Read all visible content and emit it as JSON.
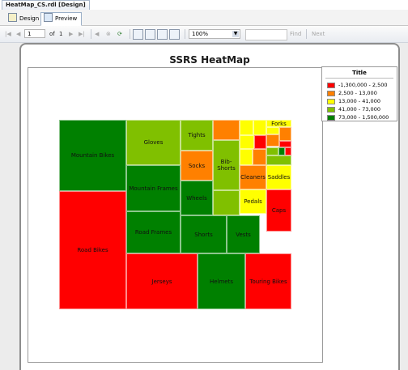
{
  "document_tab": "HeatMap_CS.rdl [Design]",
  "view_tabs": {
    "design": "Design",
    "preview": "Preview"
  },
  "toolbar": {
    "page_value": "1",
    "of_label": "of",
    "total_pages": "1",
    "zoom": "100%",
    "find_label": "Find",
    "next_label": "Next",
    "icons": [
      "first-page-icon",
      "previous-page-icon",
      "next-page-icon",
      "last-page-icon",
      "back-icon",
      "stop-icon",
      "refresh-icon",
      "print-icon",
      "print-layout-icon",
      "page-setup-icon",
      "export-icon"
    ]
  },
  "report": {
    "title": "SSRS HeatMap"
  },
  "legend": {
    "title": "Title",
    "items": [
      {
        "label": "-1,300,000 - 2,500",
        "color": "#ff0000"
      },
      {
        "label": "2,500 - 13,000",
        "color": "#ff8000"
      },
      {
        "label": "13,000 - 41,000",
        "color": "#ffff00"
      },
      {
        "label": "41,000 - 73,000",
        "color": "#80c000"
      },
      {
        "label": "73,000 - 1,500,000",
        "color": "#008000"
      }
    ]
  },
  "chart_data": {
    "type": "heatmap",
    "title": "SSRS HeatMap",
    "legend_title": "Title",
    "legend_placement": "right",
    "tiles": [
      {
        "label": "Mountain Bikes",
        "bucket": 4
      },
      {
        "label": "Road Bikes",
        "bucket": 0
      },
      {
        "label": "Gloves",
        "bucket": 3
      },
      {
        "label": "Mountain Frames",
        "bucket": 4
      },
      {
        "label": "Road Frames",
        "bucket": 4
      },
      {
        "label": "Jerseys",
        "bucket": 0
      },
      {
        "label": "Tights",
        "bucket": 3
      },
      {
        "label": "Socks",
        "bucket": 1
      },
      {
        "label": "Wheels",
        "bucket": 4
      },
      {
        "label": "Shorts",
        "bucket": 4
      },
      {
        "label": "Helmets",
        "bucket": 4
      },
      {
        "label": "Bib-Shorts",
        "bucket": 3
      },
      {
        "label": "Vests",
        "bucket": 4
      },
      {
        "label": "Touring Bikes",
        "bucket": 0
      },
      {
        "label": "Cleaners",
        "bucket": 1
      },
      {
        "label": "Saddles",
        "bucket": 2
      },
      {
        "label": "Pedals",
        "bucket": 2
      },
      {
        "label": "Caps",
        "bucket": 0
      },
      {
        "label": "Forks",
        "bucket": 2
      },
      {
        "label": "",
        "bucket": 1
      },
      {
        "label": "",
        "bucket": 3
      },
      {
        "label": "",
        "bucket": 2
      },
      {
        "label": "",
        "bucket": 2
      },
      {
        "label": "",
        "bucket": 2
      },
      {
        "label": "",
        "bucket": 0
      },
      {
        "label": "",
        "bucket": 2
      },
      {
        "label": "",
        "bucket": 1
      },
      {
        "label": "",
        "bucket": 1
      },
      {
        "label": "",
        "bucket": 0
      },
      {
        "label": "",
        "bucket": 2
      },
      {
        "label": "",
        "bucket": 1
      },
      {
        "label": "",
        "bucket": 3
      },
      {
        "label": "",
        "bucket": 4
      },
      {
        "label": "",
        "bucket": 0
      },
      {
        "label": "",
        "bucket": 3
      }
    ]
  }
}
